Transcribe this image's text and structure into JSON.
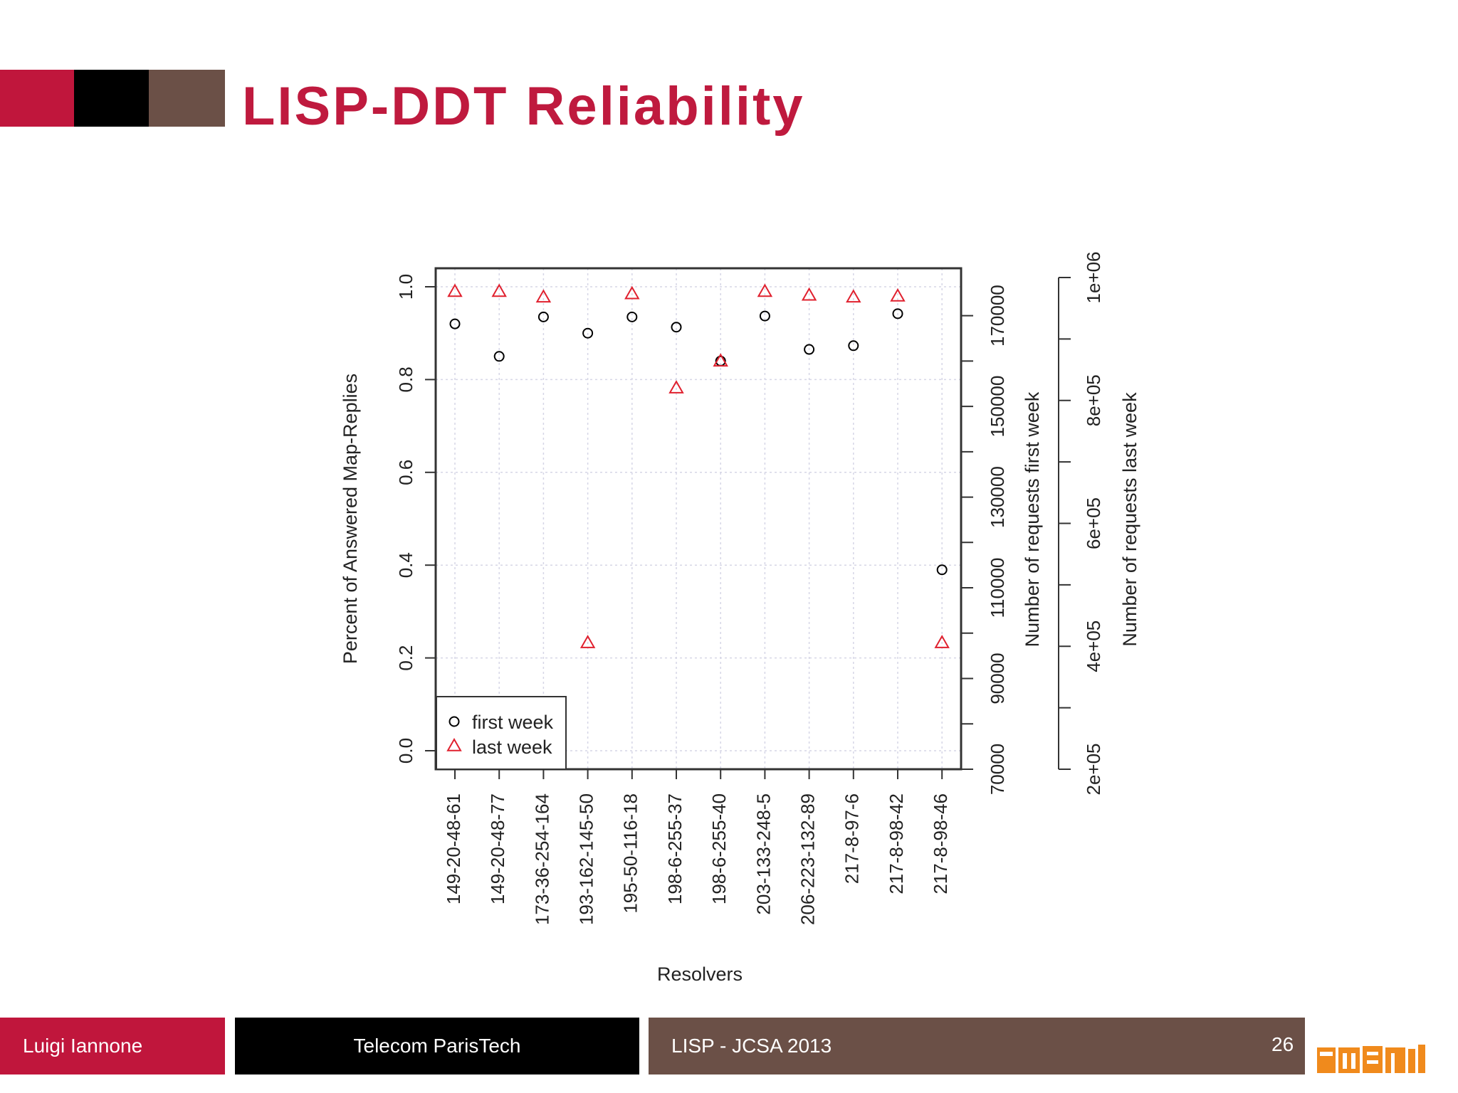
{
  "slide": {
    "title": "LISP-DDT Reliability",
    "page_number": "26",
    "colors": {
      "red": "#c0163c",
      "black": "#000000",
      "brown": "#6b5047",
      "title": "#bf1a3e",
      "logo": "#f08a1c"
    }
  },
  "footer": {
    "author": "Luigi Iannone",
    "institution": "Telecom ParisTech",
    "event": "LISP - JCSA 2013"
  },
  "logo": {
    "icon": "institution-logo-icon"
  },
  "chart_data": {
    "type": "scatter",
    "categories": [
      "149-20-48-61",
      "149-20-48-77",
      "173-36-254-164",
      "193-162-145-50",
      "195-50-116-18",
      "198-6-255-37",
      "198-6-255-40",
      "203-133-248-5",
      "206-223-132-89",
      "217-8-97-6",
      "217-8-98-42",
      "217-8-98-46"
    ],
    "series": [
      {
        "name": "first week",
        "marker": "circle",
        "color": "#000000",
        "values": [
          0.92,
          0.85,
          0.935,
          0.9,
          0.935,
          0.913,
          0.84,
          0.937,
          0.865,
          0.873,
          0.942,
          0.39
        ]
      },
      {
        "name": "last week",
        "marker": "triangle",
        "color": "#e0202e",
        "values": [
          0.99,
          0.99,
          0.978,
          0.233,
          0.985,
          0.782,
          0.84,
          0.99,
          0.982,
          0.978,
          0.98,
          0.233
        ]
      }
    ],
    "xlabel": "Resolvers",
    "ylabel": "Percent of Answered Map-Replies",
    "ylim": [
      0,
      1
    ],
    "yticks": [
      "0.0",
      "0.2",
      "0.4",
      "0.6",
      "0.8",
      "1.0"
    ],
    "right_axis_1": {
      "label": "Number of requests first week",
      "range": [
        70000,
        177000
      ],
      "ticks": [
        "70000",
        "90000",
        "110000",
        "130000",
        "150000",
        "170000"
      ]
    },
    "right_axis_2": {
      "label": "Number of requests last week",
      "range": [
        200000,
        1000000
      ],
      "ticks": [
        "2e+05",
        "4e+05",
        "6e+05",
        "8e+05",
        "1e+06"
      ]
    },
    "grid": true,
    "legend_position": "bottom-left"
  }
}
